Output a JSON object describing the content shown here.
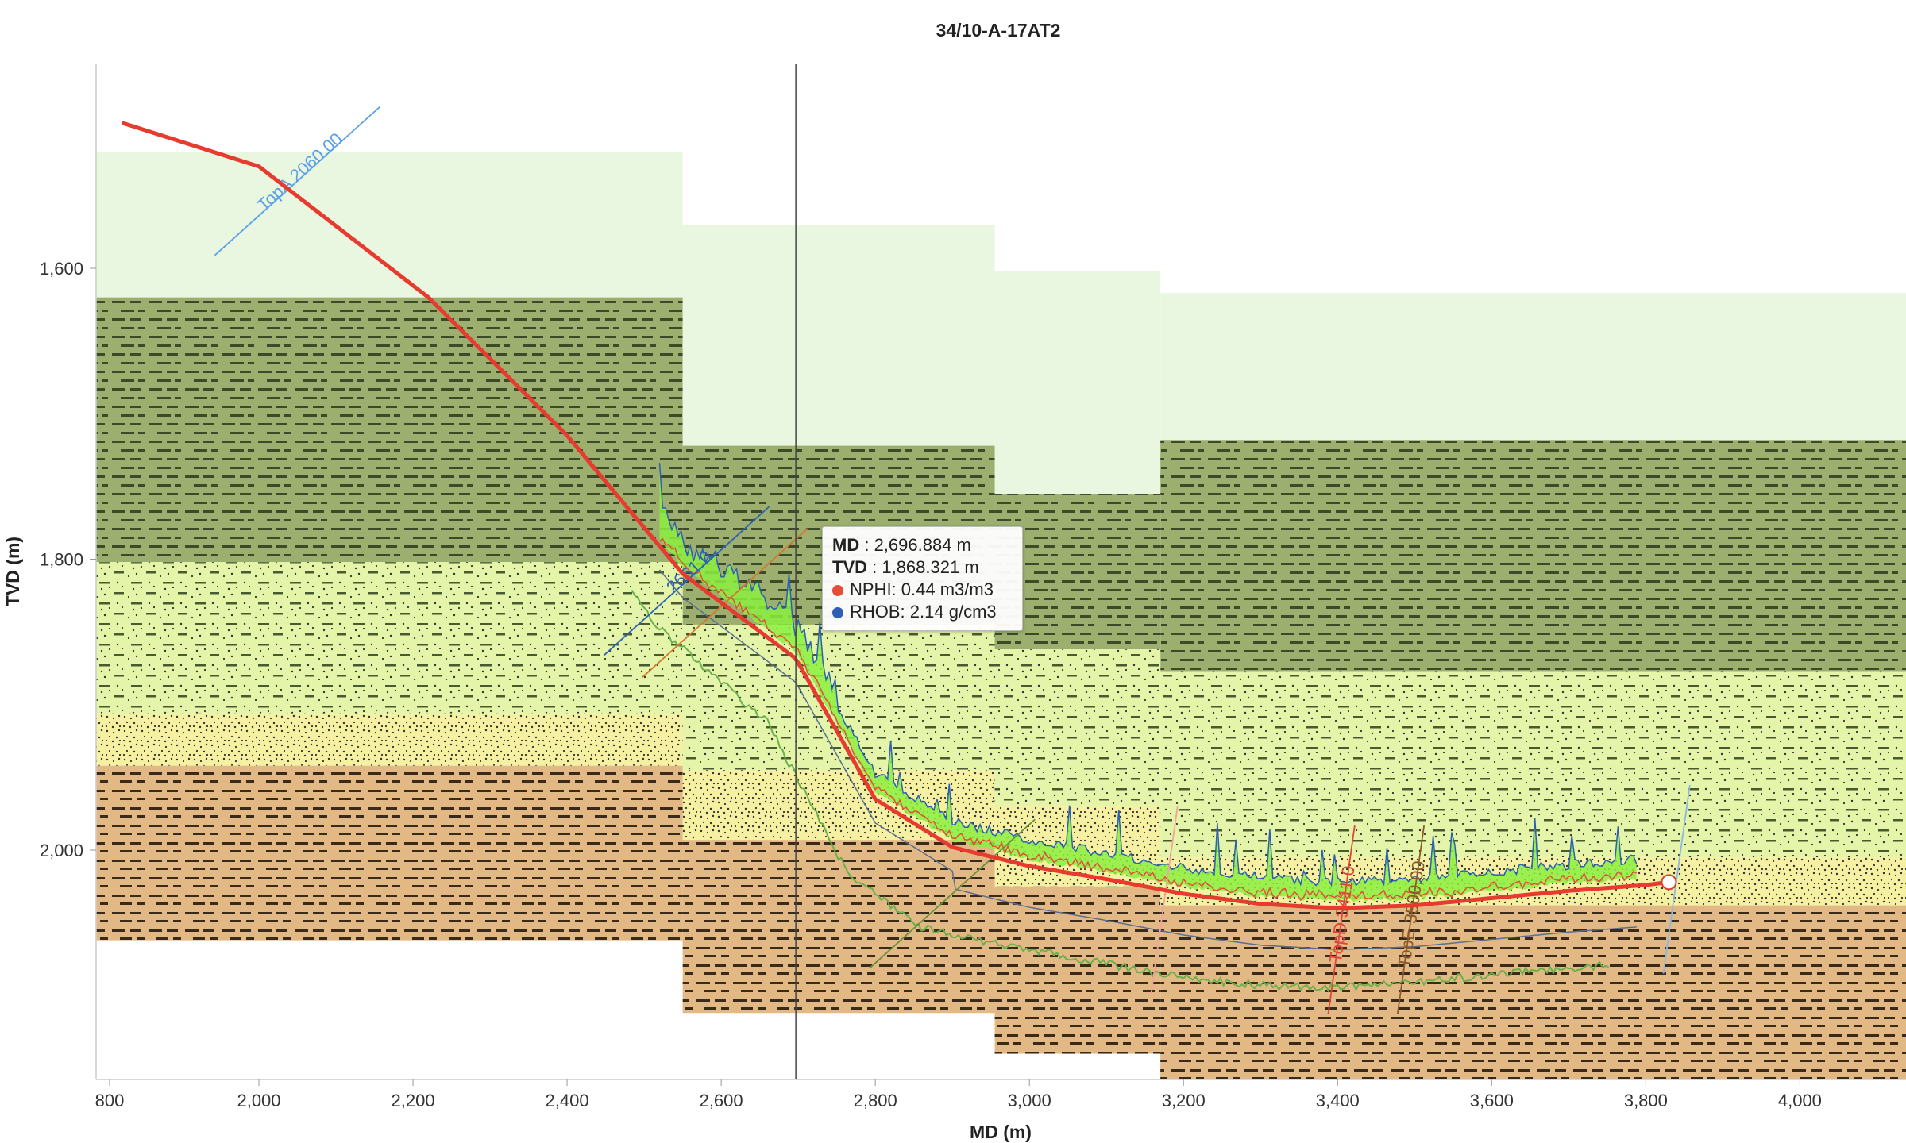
{
  "chart_data": {
    "type": "line",
    "title": "34/10-A-17AT2",
    "xlabel": "MD (m)",
    "ylabel": "TVD (m)",
    "xlim": [
      780,
      4140
    ],
    "ylim": [
      1490,
      2160
    ],
    "y_inverted": true,
    "x_ticks": [
      "800",
      "2,000",
      "2,200",
      "2,400",
      "2,600",
      "2,800",
      "3,000",
      "3,200",
      "3,400",
      "3,600",
      "3,800",
      "4,000"
    ],
    "x_tick_values": [
      800,
      2000,
      2200,
      2400,
      2600,
      2800,
      3000,
      3200,
      3400,
      3600,
      3800,
      4000
    ],
    "y_ticks": [
      "1,600",
      "1,800",
      "2,000"
    ],
    "y_tick_values": [
      1600,
      1800,
      2000
    ],
    "grid": false,
    "colors": {
      "light_green": "#e9f7e1",
      "shale_green": "#9caf6f",
      "silt_yellow_green": "#e4f4a8",
      "sand_yellow": "#f5f0a2",
      "brown_shale": "#e2b884",
      "well_path": "#e63b2e",
      "nphi": "#e64c3c",
      "rhob": "#2f5fb3",
      "gamma": "#6ab04c",
      "fill_green": "#8cf040"
    },
    "layers": [
      {
        "lithology": "light-green",
        "segments": [
          [
            780,
            2550,
            1520,
            1620
          ],
          [
            2550,
            2955,
            1570,
            1722
          ],
          [
            2955,
            3170,
            1602,
            1755
          ],
          [
            3170,
            4140,
            1617,
            1718
          ]
        ]
      },
      {
        "lithology": "shale-green",
        "segments": [
          [
            780,
            2550,
            1620,
            1802
          ],
          [
            2550,
            2955,
            1722,
            1845
          ],
          [
            2955,
            3170,
            1755,
            1862
          ],
          [
            3170,
            4140,
            1718,
            1877
          ]
        ]
      },
      {
        "lithology": "silt-yellow-green",
        "segments": [
          [
            780,
            2550,
            1802,
            1906
          ],
          [
            2550,
            2955,
            1845,
            1945
          ],
          [
            2955,
            3170,
            1862,
            1970
          ],
          [
            3170,
            4140,
            1877,
            2005
          ]
        ]
      },
      {
        "lithology": "sand-yellow",
        "segments": [
          [
            780,
            2550,
            1906,
            1942
          ],
          [
            2550,
            2955,
            1945,
            1993
          ],
          [
            2955,
            3170,
            1970,
            2025
          ],
          [
            3170,
            4140,
            2005,
            2038
          ]
        ]
      },
      {
        "lithology": "brown-shale",
        "segments": [
          [
            780,
            2550,
            1942,
            2062
          ],
          [
            2550,
            2955,
            1993,
            2112
          ],
          [
            2955,
            3170,
            2025,
            2140
          ],
          [
            3170,
            4140,
            2038,
            2160
          ]
        ]
      }
    ],
    "well_path": {
      "md": [
        900,
        2000,
        2220,
        2400,
        2550,
        2696.884,
        2800,
        2900,
        3000,
        3100,
        3200,
        3300,
        3400,
        3500,
        3600,
        3700,
        3800,
        3830
      ],
      "tvd": [
        1500,
        1530,
        1620,
        1715,
        1810,
        1868.321,
        1965,
        1998,
        2011,
        2020,
        2030,
        2037,
        2040,
        2038,
        2033,
        2028,
        2024,
        2022
      ]
    },
    "well_end_md": 3830,
    "well_end_tvd": 2022,
    "series": [
      {
        "name": "NPHI",
        "unit": "m3/m3",
        "color": "#e64c3c"
      },
      {
        "name": "RHOB",
        "unit": "g/cm3",
        "color": "#2f5fb3"
      }
    ],
    "formation_picks": [
      {
        "label": "TopA",
        "depth": "2060.00",
        "md": 2050,
        "tvd": 1540,
        "color": "#5aa0e6"
      },
      {
        "label": "",
        "depth": "2661.0",
        "md": 2555,
        "tvd": 1815,
        "color": "#2f63b3"
      },
      {
        "label": "",
        "depth": "",
        "md": 2605,
        "tvd": 1830,
        "color": "#d2772f"
      },
      {
        "label": "",
        "depth": "",
        "md": 2900,
        "tvd": 2030,
        "color": "#6a8e3c"
      },
      {
        "label": "",
        "depth": "",
        "md": 3175,
        "tvd": 2035,
        "color": "#f4a3a0"
      },
      {
        "label": "TopD",
        "depth": "3411.0",
        "md": 3405,
        "tvd": 2048,
        "color": "#e0453a"
      },
      {
        "label": "TopE",
        "depth": "3500.00",
        "md": 3495,
        "tvd": 2048,
        "color": "#8b5a2b"
      },
      {
        "label": "",
        "depth": "",
        "md": 3840,
        "tvd": 2020,
        "color": "#8fb8e0"
      }
    ],
    "cursor": {
      "md_label": "MD",
      "md_value": "2,696.884 m",
      "tvd_label": "TVD",
      "tvd_value": "1,868.321 m",
      "nphi_text": "NPHI: 0.44 m3/m3",
      "rhob_text": "RHOB: 2.14 g/cm3",
      "md": 2696.884
    }
  }
}
